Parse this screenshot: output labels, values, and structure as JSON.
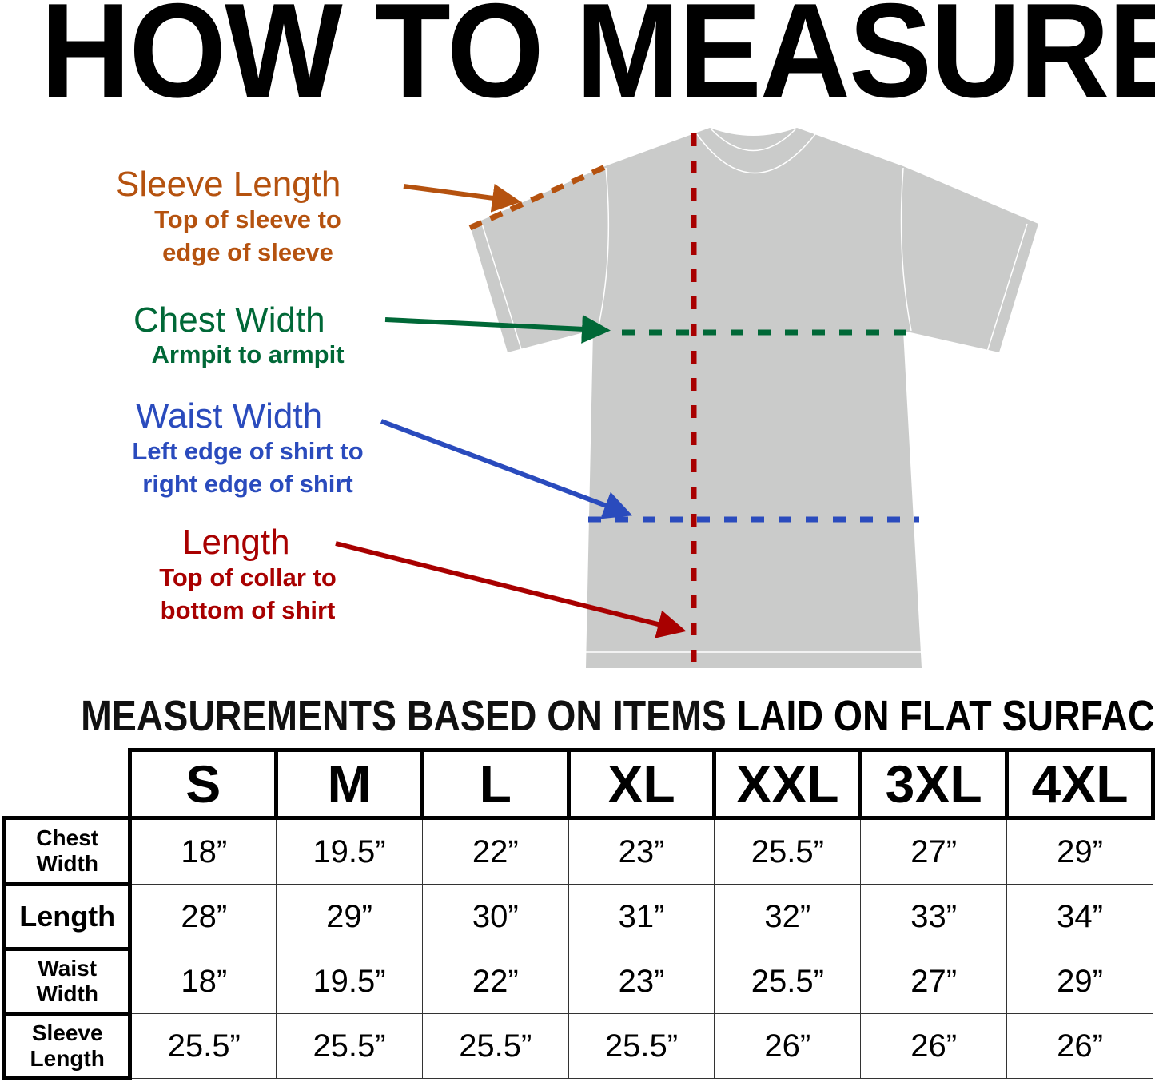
{
  "title": "HOW TO MEASURE",
  "diagram": {
    "shirt_color": "#cacbca",
    "labels": [
      {
        "key": "sleeve",
        "heading": "Sleeve Length",
        "detail_1": "Top of sleeve to",
        "detail_2": "edge of sleeve",
        "color": "#b5520f"
      },
      {
        "key": "chest",
        "heading": "Chest Width",
        "detail_1": "Armpit to armpit",
        "detail_2": "",
        "color": "#006837"
      },
      {
        "key": "waist",
        "heading": "Waist Width",
        "detail_1": "Left edge of shirt to",
        "detail_2": "right edge of shirt",
        "color": "#2a4bbd"
      },
      {
        "key": "length",
        "heading": "Length",
        "detail_1": "Top of collar to",
        "detail_2": "bottom of shirt",
        "color": "#a80000"
      }
    ]
  },
  "note": {
    "part1": "MEASUREMENTS BASED ON ITEMS ",
    "part2": "LAID ON FLAT SURFACE"
  },
  "table": {
    "sizes": [
      "S",
      "M",
      "L",
      "XL",
      "XXL",
      "3XL",
      "4XL"
    ],
    "rows": [
      {
        "label_1": "Chest",
        "label_2": "Width",
        "values": [
          "18”",
          "19.5”",
          "22”",
          "23”",
          "25.5”",
          "27”",
          "29”"
        ]
      },
      {
        "label_1": "Length",
        "label_2": "",
        "values": [
          "28”",
          "29”",
          "30”",
          "31”",
          "32”",
          "33”",
          "34”"
        ]
      },
      {
        "label_1": "Waist",
        "label_2": "Width",
        "values": [
          "18”",
          "19.5”",
          "22”",
          "23”",
          "25.5”",
          "27”",
          "29”"
        ]
      },
      {
        "label_1": "Sleeve",
        "label_2": "Length",
        "values": [
          "25.5”",
          "25.5”",
          "25.5”",
          "25.5”",
          "26”",
          "26”",
          "26”"
        ]
      }
    ]
  }
}
